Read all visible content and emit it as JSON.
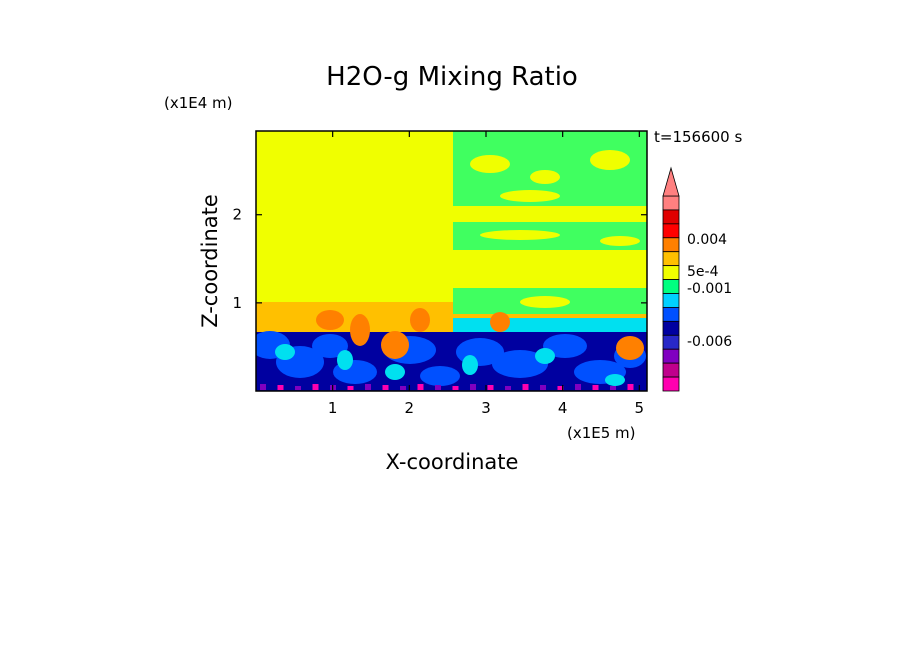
{
  "chart_data": {
    "type": "heatmap",
    "title": "H2O-g Mixing Ratio",
    "xlabel": "X-coordinate",
    "ylabel": "Z-coordinate",
    "x_unit": "(x1E5 m)",
    "y_unit": "(x1E4 m)",
    "time_label": "t=156600 s",
    "xlim": [
      0,
      5.1
    ],
    "ylim": [
      0,
      2.95
    ],
    "x_ticks": [
      {
        "value": 1,
        "label": "1"
      },
      {
        "value": 2,
        "label": "2"
      },
      {
        "value": 3,
        "label": "3"
      },
      {
        "value": 4,
        "label": "4"
      },
      {
        "value": 5,
        "label": "5"
      }
    ],
    "y_ticks": [
      {
        "value": 1,
        "label": "1"
      },
      {
        "value": 2,
        "label": "2"
      }
    ],
    "colorbar": {
      "colors": [
        "#ff00b0",
        "#c0008c",
        "#8000c0",
        "#2828c8",
        "#0000a0",
        "#0050ff",
        "#00d0ff",
        "#00ff80",
        "#f0ff00",
        "#ffc000",
        "#ff8000",
        "#ff0000",
        "#e00000",
        "#ff8080"
      ],
      "labels": [
        "0.004",
        "5e-4",
        "-0.001",
        "-0.006"
      ]
    },
    "field_colors": {
      "background": "#f0ff00",
      "orange": "#ffc000",
      "dark_orange": "#ff8000",
      "green": "#40ff60",
      "cyan": "#00e0f0",
      "blue": "#0050ff",
      "dark_blue": "#0000a0",
      "magenta": "#ff00b0",
      "purple": "#8000c0"
    }
  }
}
